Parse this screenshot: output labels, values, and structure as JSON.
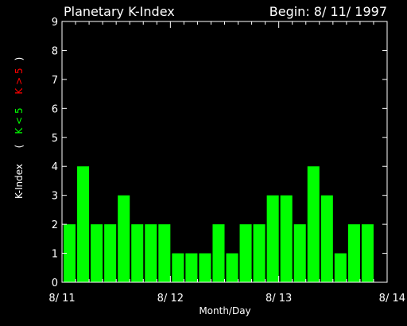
{
  "chart_data": {
    "type": "bar",
    "title": "Planetary K-Index",
    "subtitle": "Begin: 8/ 11/ 1997",
    "xlabel": "Month/Day",
    "ylabel_parts": {
      "prefix": "K-Index",
      "open_paren": "(",
      "green": "K < 5",
      "red": "K > 5",
      "close_paren": ")"
    },
    "ylim": [
      0,
      9
    ],
    "yticks": [
      "0",
      "1",
      "2",
      "3",
      "4",
      "5",
      "6",
      "7",
      "8",
      "9"
    ],
    "xlim_days": [
      0,
      3
    ],
    "xtick_labels": [
      "8/ 11",
      "8/ 12",
      "8/ 13",
      "8/ 14"
    ],
    "values": [
      2,
      4,
      2,
      2,
      3,
      2,
      2,
      2,
      1,
      1,
      1,
      2,
      1,
      2,
      2,
      3,
      3,
      2,
      4,
      3,
      1,
      2,
      2
    ],
    "bar_interval_hours": 3,
    "colors": {
      "background": "#000000",
      "axes": "#ffffff",
      "bar_low": "#00ff00",
      "bar_high": "#ff0000",
      "label_green": "#00ff00",
      "label_red": "#ff0000"
    },
    "grid": false,
    "legend": "none"
  }
}
